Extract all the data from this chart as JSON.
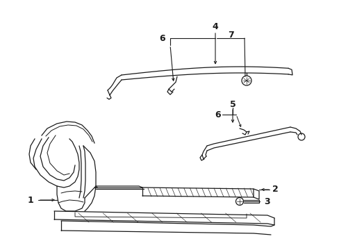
{
  "bg_color": "#ffffff",
  "line_color": "#1a1a1a",
  "lw": 0.9
}
